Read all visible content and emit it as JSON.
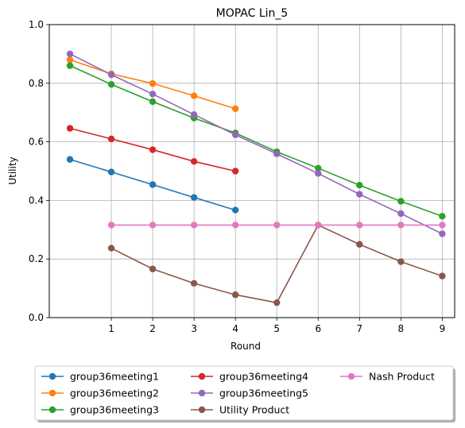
{
  "chart_data": {
    "type": "line",
    "title": "MOPAC Lin_5",
    "xlabel": "Round",
    "ylabel": "Utility",
    "xlim": [
      -0.5,
      9.3
    ],
    "ylim": [
      0.0,
      1.0
    ],
    "xticks": [
      1,
      2,
      3,
      4,
      5,
      6,
      7,
      8,
      9
    ],
    "yticks": [
      0.0,
      0.2,
      0.4,
      0.6,
      0.8,
      1.0
    ],
    "ytick_labels": [
      "0.0",
      "0.2",
      "0.4",
      "0.6",
      "0.8",
      "1.0"
    ],
    "grid": true,
    "legend_position": "bottom-center",
    "series": [
      {
        "name": "group36meeting1",
        "color": "#1f77b4",
        "x": [
          0,
          1,
          2,
          3,
          4
        ],
        "y": [
          0.54,
          0.497,
          0.454,
          0.41,
          0.367
        ]
      },
      {
        "name": "group36meeting2",
        "color": "#ff7f0e",
        "x": [
          0,
          1,
          2,
          3,
          4
        ],
        "y": [
          0.88,
          0.832,
          0.799,
          0.757,
          0.713
        ]
      },
      {
        "name": "group36meeting3",
        "color": "#2ca02c",
        "x": [
          0,
          1,
          2,
          3,
          4,
          5,
          6,
          7,
          8,
          9
        ],
        "y": [
          0.86,
          0.796,
          0.737,
          0.681,
          0.63,
          0.566,
          0.51,
          0.452,
          0.397,
          0.346
        ]
      },
      {
        "name": "group36meeting4",
        "color": "#d62728",
        "x": [
          0,
          1,
          2,
          3,
          4
        ],
        "y": [
          0.646,
          0.61,
          0.573,
          0.533,
          0.5
        ]
      },
      {
        "name": "group36meeting5",
        "color": "#9467bd",
        "x": [
          0,
          1,
          2,
          3,
          4,
          5,
          6,
          7,
          8,
          9
        ],
        "y": [
          0.9,
          0.829,
          0.763,
          0.693,
          0.624,
          0.559,
          0.492,
          0.421,
          0.355,
          0.286
        ]
      },
      {
        "name": "Utility Product",
        "color": "#8c564b",
        "x": [
          1,
          2,
          3,
          4,
          5,
          6,
          7,
          8,
          9
        ],
        "y": [
          0.237,
          0.166,
          0.117,
          0.078,
          0.051,
          0.316,
          0.25,
          0.191,
          0.142
        ]
      },
      {
        "name": "Nash Product",
        "color": "#e377c2",
        "x": [
          1,
          2,
          3,
          4,
          5,
          6,
          7,
          8,
          9
        ],
        "y": [
          0.316,
          0.316,
          0.316,
          0.316,
          0.316,
          0.316,
          0.316,
          0.316,
          0.316
        ]
      }
    ]
  }
}
